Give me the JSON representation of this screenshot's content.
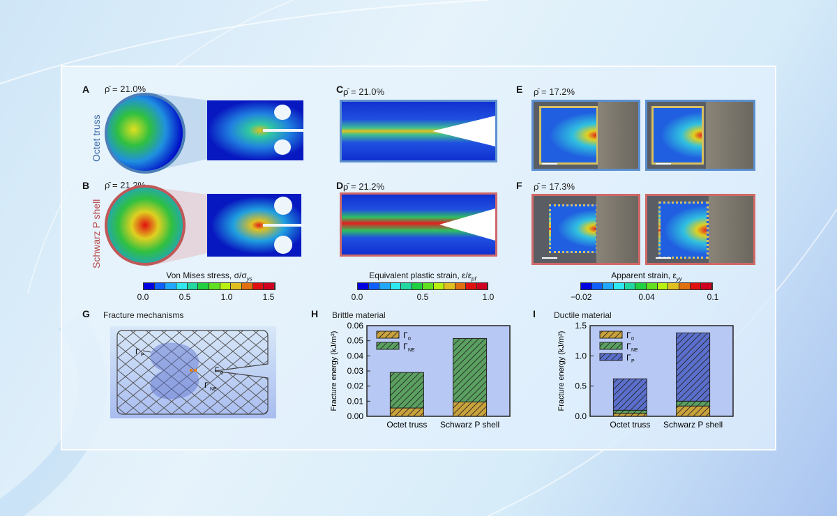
{
  "panels": {
    "A": {
      "label": "A",
      "rho": "ρ̄ = 21.0%",
      "side_label": "Octet truss"
    },
    "B": {
      "label": "B",
      "rho": "ρ̄ = 21.2%",
      "side_label": "Schwarz P shell"
    },
    "C": {
      "label": "C",
      "rho": "ρ̄ = 21.0%"
    },
    "D": {
      "label": "D",
      "rho": "ρ̄ = 21.2%"
    },
    "E": {
      "label": "E",
      "rho": "ρ̄ = 17.2%"
    },
    "F": {
      "label": "F",
      "rho": "ρ̄ = 17.3%"
    },
    "G": {
      "label": "G",
      "title": "Fracture mechanisms",
      "labels": {
        "p": "Γ",
        "p_sub": "P",
        "o": "Γ",
        "o_sub": "0",
        "ne": "Γ",
        "ne_sub": "NE"
      }
    },
    "H": {
      "label": "H",
      "title": "Brittle material"
    },
    "I": {
      "label": "I",
      "title": "Ductile material"
    }
  },
  "colorbars": [
    {
      "title": "Von Mises stress, σ/σ",
      "sub": "ys",
      "ticks": [
        "0.0",
        "0.5",
        "1.0",
        "1.5"
      ]
    },
    {
      "title": "Equivalent plastic strain, ε/ε",
      "sub": "pf",
      "ticks": [
        "0.0",
        "0.5",
        "1.0"
      ]
    },
    {
      "title": "Apparent strain, ε",
      "sub": "yy",
      "ticks": [
        "−0.02",
        "0.04",
        "0.1"
      ]
    }
  ],
  "colormap": [
    "#0000e0",
    "#1060ff",
    "#20a8ff",
    "#30e8f0",
    "#20d8a0",
    "#20d040",
    "#60e020",
    "#b8f010",
    "#e0c020",
    "#e07010",
    "#e01010",
    "#d00020"
  ],
  "accent_colors": {
    "octet": "#5b8fcf",
    "schwarz": "#d06868",
    "gamma0": "#c9a23c",
    "gammaNE": "#5aa060",
    "gammaP": "#5b6fcc"
  },
  "chart_data": [
    {
      "type": "bar",
      "stacked": true,
      "title": "Brittle material",
      "ylabel": "Fracture energy (kJ/m²)",
      "ylim": [
        0,
        0.06
      ],
      "yticks": [
        "0.00",
        "0.01",
        "0.02",
        "0.03",
        "0.04",
        "0.05",
        "0.06"
      ],
      "ytick_values": [
        0,
        0.01,
        0.02,
        0.03,
        0.04,
        0.05,
        0.06
      ],
      "categories": [
        "Octet truss",
        "Schwarz P shell"
      ],
      "series": [
        {
          "name": "Γ0",
          "legend": "Γ",
          "sub": "0",
          "color": "#c9a23c",
          "values": [
            0.0055,
            0.0095
          ]
        },
        {
          "name": "ΓNE",
          "legend": "Γ",
          "sub": "NE",
          "color": "#5aa060",
          "values": [
            0.0235,
            0.042
          ]
        }
      ],
      "legend": "top-left",
      "grid": false
    },
    {
      "type": "bar",
      "stacked": true,
      "title": "Ductile material",
      "ylabel": "Fracture energy (kJ/m²)",
      "ylim": [
        0,
        1.5
      ],
      "yticks": [
        "0.0",
        "0.5",
        "1.0",
        "1.5"
      ],
      "ytick_values": [
        0,
        0.5,
        1.0,
        1.5
      ],
      "categories": [
        "Octet truss",
        "Schwarz P shell"
      ],
      "series": [
        {
          "name": "Γ0",
          "legend": "Γ",
          "sub": "0",
          "color": "#c9a23c",
          "values": [
            0.05,
            0.17
          ]
        },
        {
          "name": "ΓNE",
          "legend": "Γ",
          "sub": "NE",
          "color": "#5aa060",
          "values": [
            0.05,
            0.08
          ]
        },
        {
          "name": "ΓP",
          "legend": "Γ",
          "sub": "P",
          "color": "#5b6fcc",
          "values": [
            0.52,
            1.13
          ]
        }
      ],
      "legend": "top-left",
      "grid": false
    }
  ]
}
